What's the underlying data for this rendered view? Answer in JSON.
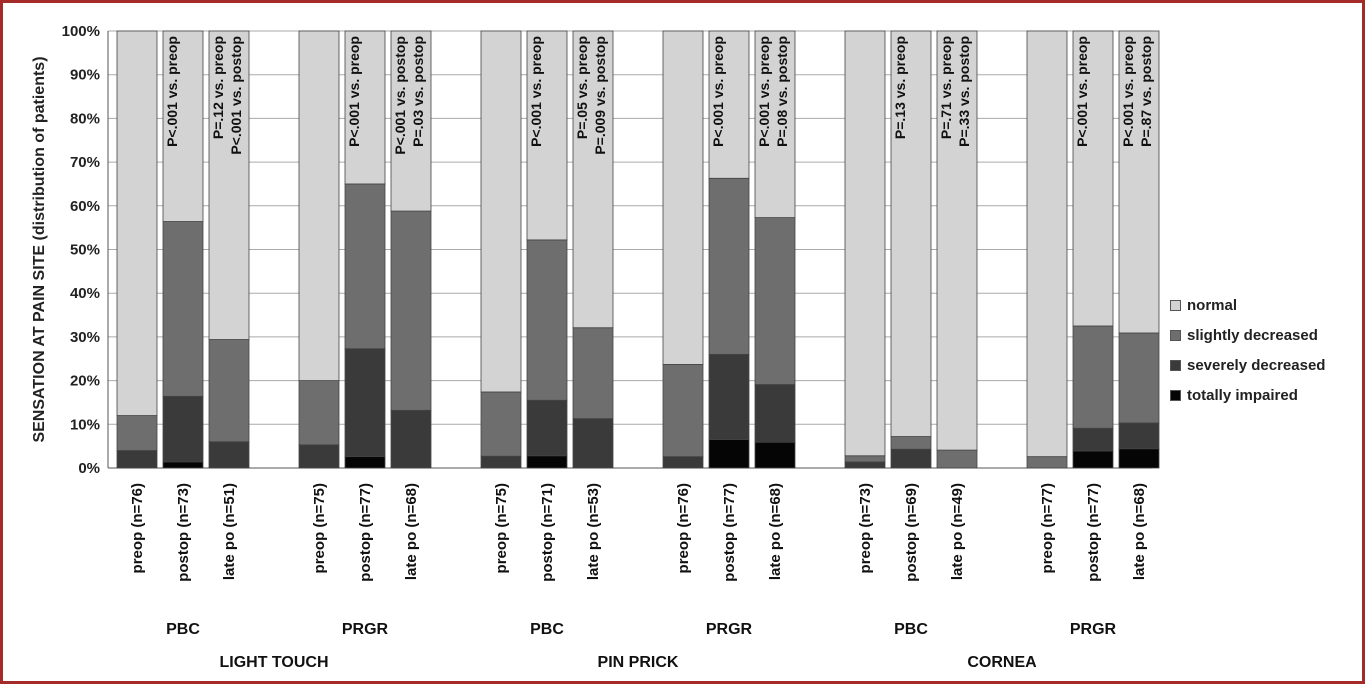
{
  "chart_data": {
    "type": "bar",
    "stacked": true,
    "percent": true,
    "ylabel": "SENSATION AT PAIN SITE (distribution of patients)",
    "ylim": [
      0,
      100
    ],
    "yticks": [
      "0%",
      "10%",
      "20%",
      "30%",
      "40%",
      "50%",
      "60%",
      "70%",
      "80%",
      "90%",
      "100%"
    ],
    "grid": true,
    "legend_position": "right",
    "series": [
      {
        "name": "totally impaired",
        "color": "#050505"
      },
      {
        "name": "severely decreased",
        "color": "#3a3a3a"
      },
      {
        "name": "slightly decreased",
        "color": "#6e6e6e"
      },
      {
        "name": "normal",
        "color": "#d3d3d3"
      }
    ],
    "legend_order": [
      "normal",
      "slightly decreased",
      "severely decreased",
      "totally impaired"
    ],
    "categories": [
      "preop (n=76)",
      "postop (n=73)",
      "late po (n=51)",
      "preop (n=75)",
      "postop (n=77)",
      "late po (n=68)",
      "preop (n=75)",
      "postop (n=71)",
      "late po (n=53)",
      "preop (n=76)",
      "postop (n=77)",
      "late po (n=68)",
      "preop (n=73)",
      "postop (n=69)",
      "late po (n=49)",
      "preop (n=77)",
      "postop (n=77)",
      "late po (n=68)"
    ],
    "bars": [
      {
        "values": [
          0,
          4,
          8,
          88
        ],
        "annotations": []
      },
      {
        "values": [
          1.4,
          15,
          40,
          43.6
        ],
        "annotations": [
          "P<.001 vs. preop"
        ]
      },
      {
        "values": [
          0,
          6,
          23.4,
          70.6
        ],
        "annotations": [
          "P=.12 vs. preop",
          "P<.001 vs. postop"
        ]
      },
      {
        "values": [
          0,
          5.3,
          14.7,
          80
        ],
        "annotations": []
      },
      {
        "values": [
          2.6,
          24.7,
          37.7,
          35
        ],
        "annotations": [
          "P<.001 vs. preop"
        ]
      },
      {
        "values": [
          0,
          13.2,
          45.6,
          41.2
        ],
        "annotations": [
          "P<.001 vs. postop",
          "P=.03 vs. postop"
        ]
      },
      {
        "values": [
          0,
          2.7,
          14.7,
          82.6
        ],
        "annotations": []
      },
      {
        "values": [
          2.8,
          12.7,
          36.7,
          47.8
        ],
        "annotations": [
          "P<.001 vs. preop"
        ]
      },
      {
        "values": [
          0,
          11.3,
          20.8,
          67.9
        ],
        "annotations": [
          "P=.05 vs. preop",
          "P=.009 vs. postop"
        ]
      },
      {
        "values": [
          0,
          2.6,
          21.1,
          76.3
        ],
        "annotations": []
      },
      {
        "values": [
          6.5,
          19.5,
          40.3,
          33.7
        ],
        "annotations": [
          "P<.001 vs. preop"
        ]
      },
      {
        "values": [
          5.9,
          13.2,
          38.2,
          42.7
        ],
        "annotations": [
          "P<.001 vs. preop",
          "P=.08 vs. postop"
        ]
      },
      {
        "values": [
          0,
          1.4,
          1.4,
          97.2
        ],
        "annotations": []
      },
      {
        "values": [
          0,
          4.3,
          2.9,
          92.8
        ],
        "annotations": [
          "P=.13 vs. preop"
        ]
      },
      {
        "values": [
          0,
          0,
          4.1,
          95.9
        ],
        "annotations": [
          "P=.71 vs. preop",
          "P=.33 vs. postop"
        ]
      },
      {
        "values": [
          0,
          0,
          2.6,
          97.4
        ],
        "annotations": []
      },
      {
        "values": [
          3.9,
          5.2,
          23.4,
          67.5
        ],
        "annotations": [
          "P<.001 vs. preop"
        ]
      },
      {
        "values": [
          4.4,
          5.9,
          20.6,
          69.1
        ],
        "annotations": [
          "P<.001 vs. preop",
          "P=.87 vs. postop"
        ]
      }
    ],
    "subgroups": [
      "PBC",
      "PRGR",
      "PBC",
      "PRGR",
      "PBC",
      "PRGR"
    ],
    "groups": [
      "LIGHT TOUCH",
      "PIN PRICK",
      "CORNEA"
    ]
  }
}
